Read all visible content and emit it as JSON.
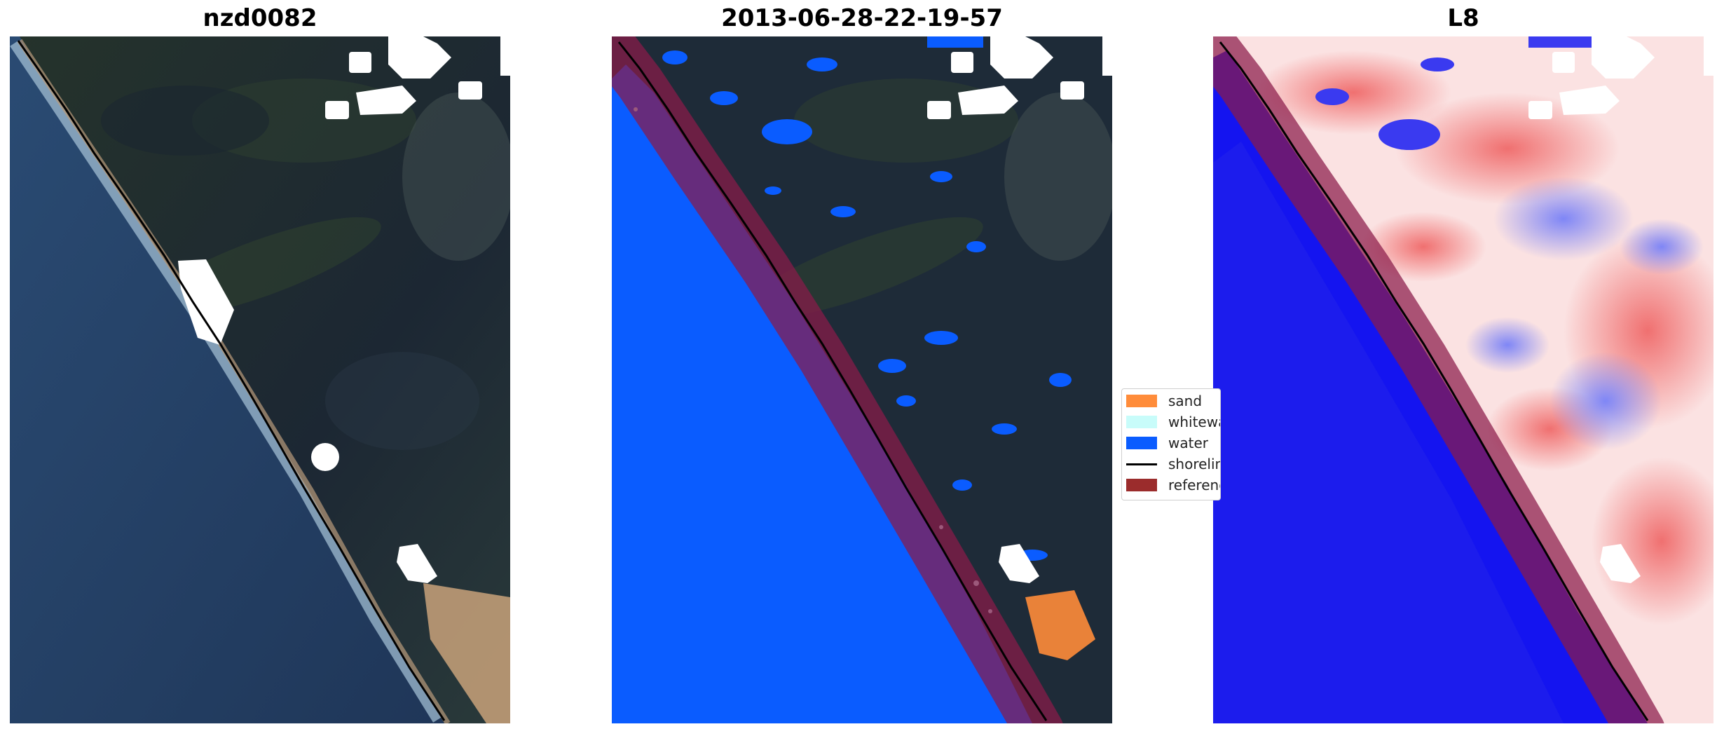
{
  "panels": [
    {
      "title": "nzd0082"
    },
    {
      "title": "2013-06-28-22-19-57"
    },
    {
      "title": "L8"
    }
  ],
  "legend": {
    "items": [
      {
        "label": "sand",
        "color": "#ff8c3a",
        "kind": "patch"
      },
      {
        "label": "whitewater",
        "color": "#c8fcfa",
        "kind": "patch"
      },
      {
        "label": "water",
        "color": "#0a5cff",
        "kind": "patch"
      },
      {
        "label": "shoreline",
        "color": "#000000",
        "kind": "line"
      },
      {
        "label": "reference shoreline buffer",
        "color": "#9b2c2c",
        "kind": "patch"
      }
    ]
  },
  "colors": {
    "ocean": "#24406a",
    "land": "#1e2b38",
    "water_class": "#0a5cff",
    "mndwi_water": "#1414f0",
    "mndwi_land": "#f08080",
    "buffer": "#8b1a4a",
    "cloud_mask": "#ffffff"
  }
}
